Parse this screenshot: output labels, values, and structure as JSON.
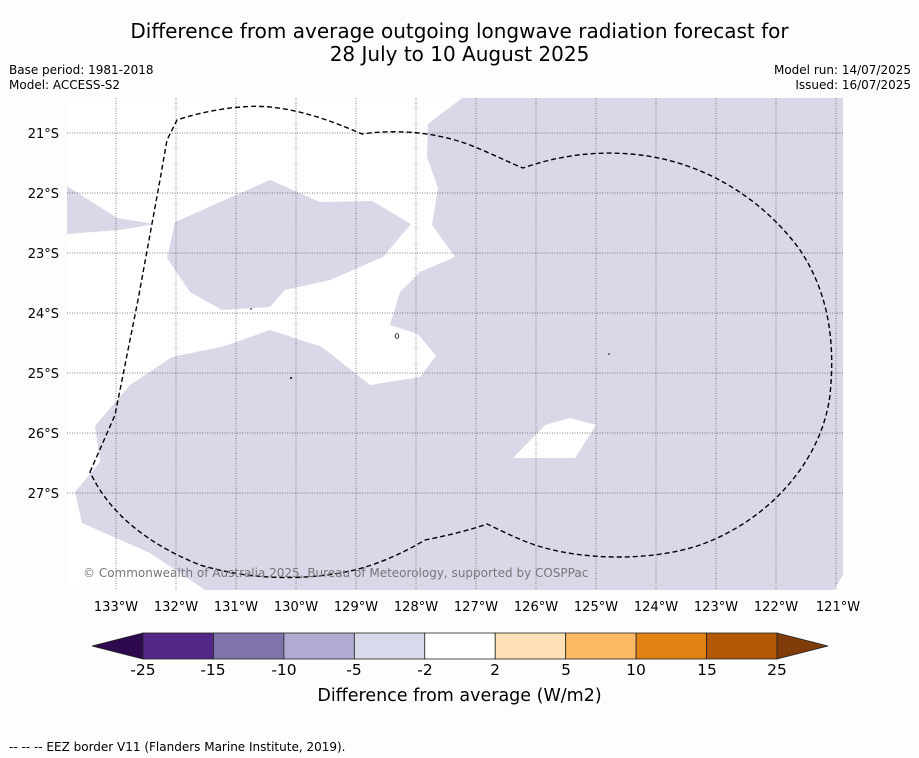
{
  "title": {
    "line1": "Difference from average outgoing longwave radiation forecast for",
    "line2": "28 July to 10 August 2025"
  },
  "meta_left": {
    "base_period": "Base period: 1981-2018",
    "model": "Model: ACCESS-S2"
  },
  "meta_right": {
    "model_run": "Model run: 14/07/2025",
    "issued": "Issued: 16/07/2025"
  },
  "map": {
    "lat_labels": [
      "21°S",
      "22°S",
      "23°S",
      "24°S",
      "25°S",
      "26°S",
      "27°S"
    ],
    "lon_labels": [
      "133°W",
      "132°W",
      "131°W",
      "130°W",
      "129°W",
      "128°W",
      "127°W",
      "126°W",
      "125°W",
      "124°W",
      "123°W",
      "122°W",
      "121°W"
    ],
    "copyright": "© Commonwealth of Australia 2025, Bureau of Meteorology, supported by COSPPac",
    "anomaly_fill_color": "#d8d8e9",
    "eez_line_color": "#000000"
  },
  "colorbar": {
    "ticks": [
      "-25",
      "-15",
      "-10",
      "-5",
      "-2",
      "2",
      "5",
      "10",
      "15",
      "25"
    ],
    "bins": [
      {
        "range": "< -25",
        "color": "#2d0a4e"
      },
      {
        "range": "-25 to -15",
        "color": "#542788"
      },
      {
        "range": "-15 to -10",
        "color": "#8073ac"
      },
      {
        "range": "-10 to -5",
        "color": "#b2abd2"
      },
      {
        "range": "-5 to -2",
        "color": "#d8daeb"
      },
      {
        "range": "-2 to 2",
        "color": "#ffffff"
      },
      {
        "range": "2 to 5",
        "color": "#fee0b6"
      },
      {
        "range": "5 to 10",
        "color": "#fdb863"
      },
      {
        "range": "10 to 15",
        "color": "#e08214"
      },
      {
        "range": "15 to 25",
        "color": "#b35806"
      },
      {
        "range": "> 25",
        "color": "#7f3b08"
      }
    ],
    "label": "Difference from average (W/m2)"
  },
  "footer": {
    "text": "--  --  -- EEZ border V11 (Flanders Marine Institute, 2019)."
  }
}
